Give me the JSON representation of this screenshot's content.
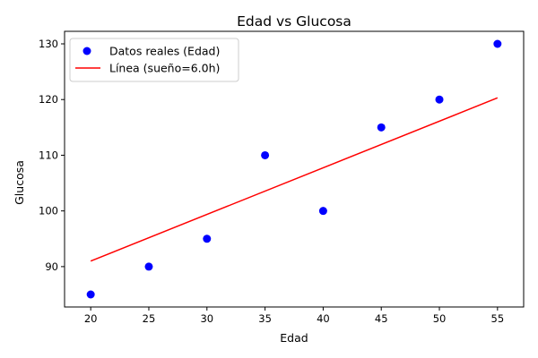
{
  "chart_data": {
    "type": "scatter",
    "title": "Edad vs Glucosa",
    "xlabel": "Edad",
    "ylabel": "Glucosa",
    "xlim": [
      17.75,
      57.25
    ],
    "ylim": [
      82.75,
      132.25
    ],
    "xticks": [
      20,
      25,
      30,
      35,
      40,
      45,
      50,
      55
    ],
    "yticks": [
      90,
      100,
      110,
      120,
      130
    ],
    "grid": false,
    "legend_position": "top-left",
    "series": [
      {
        "name": "Datos reales (Edad)",
        "kind": "scatter",
        "color": "#0000ff",
        "x": [
          20,
          25,
          30,
          35,
          40,
          45,
          50,
          55
        ],
        "y": [
          85,
          90,
          95,
          110,
          100,
          115,
          120,
          130
        ]
      },
      {
        "name": "Línea (sueño=6.0h)",
        "kind": "line",
        "color": "#ff0000",
        "x": [
          20,
          55
        ],
        "y": [
          91.0,
          120.3
        ]
      }
    ]
  }
}
